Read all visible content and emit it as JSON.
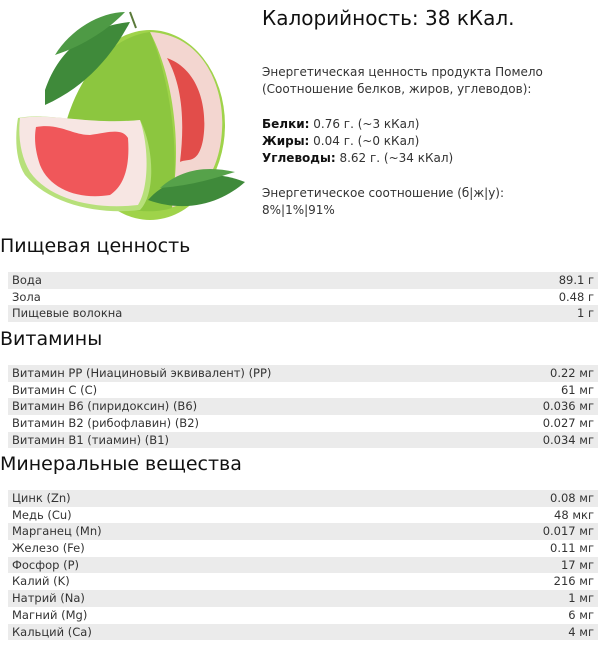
{
  "product": {
    "image_alt": "pomelo",
    "calories_title": "Калорийность: 38 кКал.",
    "energy_intro_1": "Энергетическая ценность продукта Помело",
    "energy_intro_2": "(Соотношение белков, жиров, углеводов):",
    "macros": [
      {
        "label": "Белки:",
        "value": " 0.76 г. (~3 кКал)"
      },
      {
        "label": "Жиры:",
        "value": " 0.04 г. (~0 кКал)"
      },
      {
        "label": "Углеводы:",
        "value": " 8.62 г. (~34 кКал)"
      }
    ],
    "ratio_label": "Энергетическое соотношение (б|ж|у):",
    "ratio_value": "8%|1%|91%"
  },
  "sections": [
    {
      "title": "Пищевая ценность",
      "rows": [
        {
          "name": "Вода",
          "value": "89.1 г"
        },
        {
          "name": "Зола",
          "value": "0.48 г"
        },
        {
          "name": "Пищевые волокна",
          "value": "1 г"
        }
      ]
    },
    {
      "title": "Витамины",
      "rows": [
        {
          "name": "Витамин PP (Ниациновый эквивалент) (PP)",
          "value": "0.22 мг"
        },
        {
          "name": "Витамин C (C)",
          "value": "61 мг"
        },
        {
          "name": "Витамин B6 (пиридоксин) (B6)",
          "value": "0.036 мг"
        },
        {
          "name": "Витамин B2 (рибофлавин) (B2)",
          "value": "0.027 мг"
        },
        {
          "name": "Витамин B1 (тиамин) (B1)",
          "value": "0.034 мг"
        }
      ]
    },
    {
      "title": "Минеральные вещества",
      "rows": [
        {
          "name": "Цинк (Zn)",
          "value": "0.08 мг"
        },
        {
          "name": "Медь (Cu)",
          "value": "48 мкг"
        },
        {
          "name": "Марганец (Mn)",
          "value": "0.017 мг"
        },
        {
          "name": "Железо (Fe)",
          "value": "0.11 мг"
        },
        {
          "name": "Фосфор (P)",
          "value": "17 мг"
        },
        {
          "name": "Калий (K)",
          "value": "216 мг"
        },
        {
          "name": "Натрий (Na)",
          "value": "1 мг"
        },
        {
          "name": "Магний (Mg)",
          "value": "6 мг"
        },
        {
          "name": "Кальций (Ca)",
          "value": "4 мг"
        }
      ]
    }
  ],
  "colors": {
    "row_stripe": "#ebebeb",
    "rind": "#8cc63f",
    "flesh": "#f0575a",
    "leaf": "#3f8a3a"
  }
}
